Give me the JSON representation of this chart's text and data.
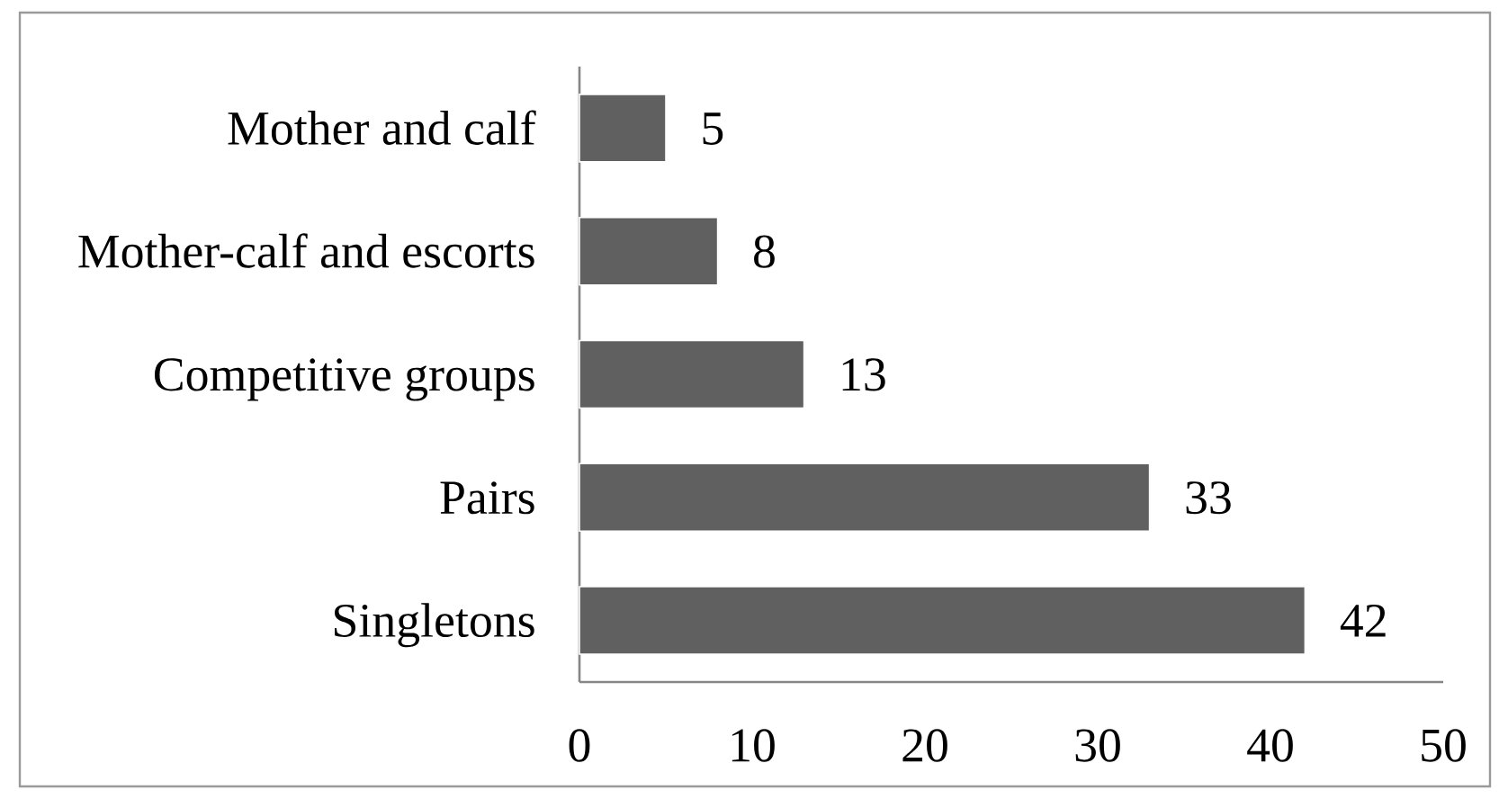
{
  "chart_data": {
    "type": "bar",
    "orientation": "horizontal",
    "categories": [
      "Mother and calf",
      "Mother-calf and escorts",
      "Competitive groups",
      "Pairs",
      "Singletons"
    ],
    "values": [
      5,
      8,
      13,
      33,
      42
    ],
    "color": "#606060",
    "data_labels": true,
    "xlim": [
      0,
      50
    ],
    "xticks": [
      0,
      10,
      20,
      30,
      40,
      50
    ]
  }
}
